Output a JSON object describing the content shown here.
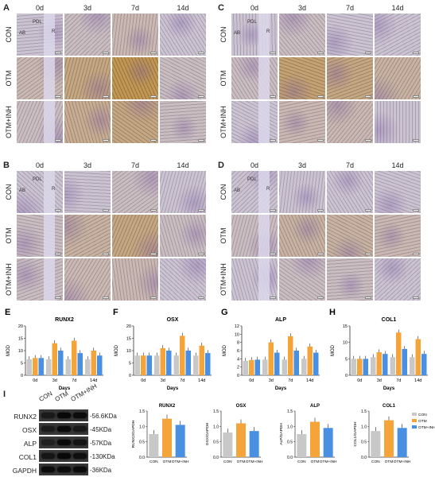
{
  "panels": {
    "A": {
      "letter": "A",
      "cols": [
        "0d",
        "3d",
        "7d",
        "14d"
      ],
      "rows": [
        "CON",
        "OTM",
        "OTM+INH"
      ],
      "tags": [
        "AB",
        "PDL",
        "R"
      ],
      "tint": [
        [
          0.1,
          0.2,
          0.3,
          0.1
        ],
        [
          0.3,
          0.6,
          0.9,
          0.2
        ],
        [
          0.2,
          0.5,
          0.6,
          0.2
        ]
      ]
    },
    "B": {
      "letter": "B",
      "cols": [
        "0d",
        "3d",
        "7d",
        "14d"
      ],
      "rows": [
        "CON",
        "OTM",
        "OTM+INH"
      ],
      "tags": [
        "AB",
        "PDL",
        "R"
      ],
      "tint": [
        [
          0.1,
          0.1,
          0.2,
          0.1
        ],
        [
          0.2,
          0.4,
          0.6,
          0.2
        ],
        [
          0.2,
          0.3,
          0.3,
          0.1
        ]
      ]
    },
    "C": {
      "letter": "C",
      "cols": [
        "0d",
        "3d",
        "7d",
        "14d"
      ],
      "rows": [
        "CON",
        "OTM",
        "OTM+INH"
      ],
      "tags": [
        "AB",
        "PDL",
        "R"
      ],
      "tint": [
        [
          0.1,
          0.2,
          0.1,
          0.1
        ],
        [
          0.2,
          0.7,
          0.6,
          0.4
        ],
        [
          0.1,
          0.3,
          0.3,
          0.1
        ]
      ]
    },
    "D": {
      "letter": "D",
      "cols": [
        "0d",
        "3d",
        "7d",
        "14d"
      ],
      "rows": [
        "CON",
        "OTM",
        "OTM+INH"
      ],
      "tags": [
        "AB",
        "PDL",
        "R"
      ],
      "tint": [
        [
          0.1,
          0.1,
          0.1,
          0.1
        ],
        [
          0.2,
          0.4,
          0.4,
          0.3
        ],
        [
          0.1,
          0.2,
          0.2,
          0.1
        ]
      ]
    }
  },
  "colors": {
    "CON": "#c8c8c8",
    "OTM": "#f5a43a",
    "OTM+INH": "#4a90e2"
  },
  "chart_data": [
    {
      "type": "bar",
      "panel": "E",
      "title": "RUNX2",
      "xlabel": "Days",
      "ylabel": "MOD",
      "ylim": [
        0,
        20
      ],
      "yticks": [
        0,
        5,
        10,
        15,
        20
      ],
      "categories": [
        "0d",
        "3d",
        "7d",
        "14d"
      ],
      "series": [
        {
          "name": "CON",
          "values": [
            6.5,
            6.5,
            6.5,
            6.5
          ]
        },
        {
          "name": "OTM",
          "values": [
            7,
            13,
            14,
            10
          ]
        },
        {
          "name": "OTM+INH",
          "values": [
            7,
            10,
            9,
            8
          ]
        }
      ]
    },
    {
      "type": "bar",
      "panel": "F",
      "title": "OSX",
      "xlabel": "Days",
      "ylabel": "MOD",
      "ylim": [
        0,
        20
      ],
      "yticks": [
        0,
        5,
        10,
        15,
        20
      ],
      "categories": [
        "0d",
        "3d",
        "7d",
        "14d"
      ],
      "series": [
        {
          "name": "CON",
          "values": [
            8,
            8,
            8,
            8
          ]
        },
        {
          "name": "OTM",
          "values": [
            8,
            11,
            16,
            12
          ]
        },
        {
          "name": "OTM+INH",
          "values": [
            8,
            10,
            10,
            9
          ]
        }
      ]
    },
    {
      "type": "bar",
      "panel": "G",
      "title": "ALP",
      "xlabel": "Days",
      "ylabel": "MOD",
      "ylim": [
        0,
        12
      ],
      "yticks": [
        0,
        2,
        4,
        6,
        8,
        10,
        12
      ],
      "categories": [
        "0d",
        "3d",
        "7d",
        "14d"
      ],
      "series": [
        {
          "name": "CON",
          "values": [
            3.5,
            3.8,
            3.8,
            4
          ]
        },
        {
          "name": "OTM",
          "values": [
            3.7,
            8,
            9.5,
            7
          ]
        },
        {
          "name": "OTM+INH",
          "values": [
            3.8,
            5.5,
            6,
            5.5
          ]
        }
      ]
    },
    {
      "type": "bar",
      "panel": "H",
      "title": "COL1",
      "xlabel": "Days",
      "ylabel": "MOD",
      "ylim": [
        0,
        15
      ],
      "yticks": [
        0,
        5,
        10,
        15
      ],
      "categories": [
        "0d",
        "3d",
        "7d",
        "14d"
      ],
      "series": [
        {
          "name": "CON",
          "values": [
            5,
            5.5,
            5.5,
            5.5
          ]
        },
        {
          "name": "OTM",
          "values": [
            5,
            7,
            13,
            11
          ]
        },
        {
          "name": "OTM+INH",
          "values": [
            5,
            6.5,
            8,
            6.5
          ]
        }
      ]
    },
    {
      "type": "bar",
      "panel": "I",
      "title": "RUNX2",
      "xlabel": "",
      "ylabel": "RUNX2/GAPDH",
      "ylim": [
        0,
        1.5
      ],
      "yticks": [
        0.0,
        0.5,
        1.0,
        1.5
      ],
      "categories": [
        "CON",
        "OTM",
        "OTM+INH"
      ],
      "series": [
        {
          "name": "",
          "values": [
            0.75,
            1.25,
            1.05
          ]
        }
      ]
    },
    {
      "type": "bar",
      "panel": "I",
      "title": "OSX",
      "xlabel": "",
      "ylabel": "OSX/GAPDH",
      "ylim": [
        0,
        1.5
      ],
      "yticks": [
        0.0,
        0.5,
        1.0,
        1.5
      ],
      "categories": [
        "CON",
        "OTM",
        "OTM+INH"
      ],
      "series": [
        {
          "name": "",
          "values": [
            0.8,
            1.1,
            0.85
          ]
        }
      ]
    },
    {
      "type": "bar",
      "panel": "I",
      "title": "ALP",
      "xlabel": "",
      "ylabel": "ALP/GAPDH",
      "ylim": [
        0,
        1.5
      ],
      "yticks": [
        0.0,
        0.5,
        1.0,
        1.5
      ],
      "categories": [
        "CON",
        "OTM",
        "OTM+INH"
      ],
      "series": [
        {
          "name": "",
          "values": [
            0.75,
            1.15,
            0.95
          ]
        }
      ]
    },
    {
      "type": "bar",
      "panel": "I",
      "title": "COL1",
      "xlabel": "",
      "ylabel": "COL1/GAPDH",
      "ylim": [
        0,
        1.5
      ],
      "yticks": [
        0.0,
        0.5,
        1.0,
        1.5
      ],
      "categories": [
        "CON",
        "OTM",
        "OTM+INH"
      ],
      "series": [
        {
          "name": "",
          "values": [
            0.85,
            1.2,
            0.95
          ]
        }
      ],
      "legend": [
        "CON",
        "OTM",
        "OTM+INH"
      ]
    }
  ],
  "panel_letters": {
    "E": "E",
    "F": "F",
    "G": "G",
    "H": "H",
    "I": "I"
  },
  "western": {
    "lanes": [
      "CON",
      "OTM",
      "OTM+INH"
    ],
    "bands": [
      {
        "name": "RUNX2",
        "kda": "-56.6KDa"
      },
      {
        "name": "OSX",
        "kda": "-45KDa"
      },
      {
        "name": "ALP",
        "kda": "-57KDa"
      },
      {
        "name": "COL1",
        "kda": "-130KDa"
      },
      {
        "name": "GAPDH",
        "kda": "-36KDa"
      }
    ]
  }
}
